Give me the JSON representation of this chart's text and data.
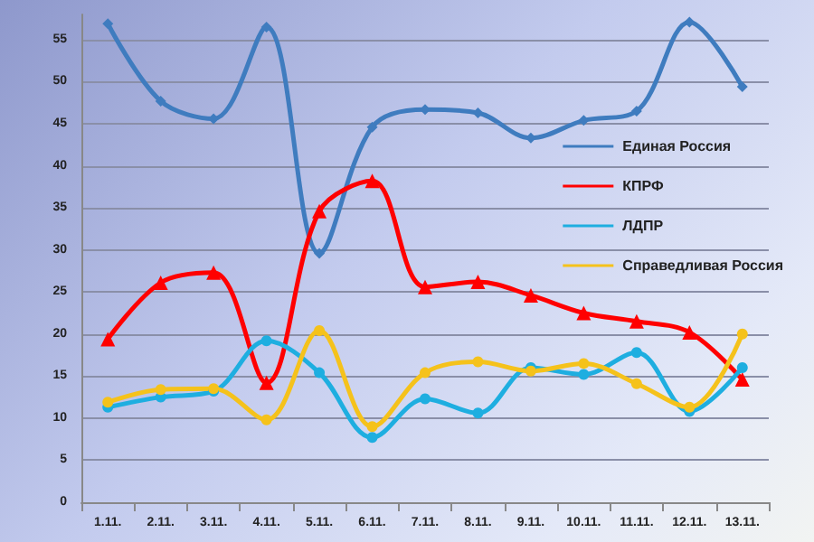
{
  "chart_data": {
    "type": "line",
    "categories": [
      "1.11.",
      "2.11.",
      "3.11.",
      "4.11.",
      "5.11.",
      "6.11.",
      "7.11.",
      "8.11.",
      "9.11.",
      "10.11.",
      "11.11.",
      "12.11.",
      "13.11."
    ],
    "series": [
      {
        "name": "Единая Россия",
        "color": "#3f7cbf",
        "marker": "diamond",
        "values": [
          56.9,
          47.7,
          45.6,
          56.5,
          29.6,
          44.6,
          46.7,
          46.3,
          43.3,
          45.4,
          46.5,
          57.1,
          49.4
        ]
      },
      {
        "name": "КПРФ",
        "color": "#ff0000",
        "marker": "triangle",
        "values": [
          19.4,
          26.1,
          27.3,
          14.2,
          34.6,
          38.2,
          25.6,
          26.2,
          24.6,
          22.5,
          21.5,
          20.2,
          14.6
        ]
      },
      {
        "name": "ЛДПР",
        "color": "#1eaee0",
        "marker": "circle",
        "values": [
          11.3,
          12.5,
          13.2,
          19.2,
          15.4,
          7.7,
          12.3,
          10.6,
          16.0,
          15.2,
          17.8,
          10.8,
          16.0
        ]
      },
      {
        "name": "Справедливая Россия",
        "color": "#f5c21b",
        "marker": "circle",
        "values": [
          11.9,
          13.4,
          13.5,
          9.8,
          20.4,
          9.0,
          15.4,
          16.7,
          15.6,
          16.5,
          14.1,
          11.3,
          20.0
        ]
      }
    ],
    "ylim": [
      0,
      58
    ],
    "yticks": [
      0,
      5,
      10,
      15,
      20,
      25,
      30,
      35,
      40,
      45,
      50,
      55
    ],
    "grid": "y",
    "legend": "right"
  }
}
